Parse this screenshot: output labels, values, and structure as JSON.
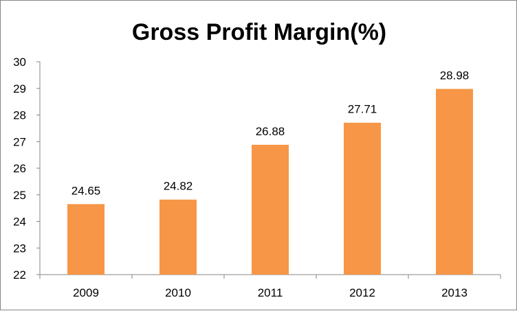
{
  "chart_data": {
    "type": "bar",
    "title": "Gross Profit Margin(%)",
    "categories": [
      "2009",
      "2010",
      "2011",
      "2012",
      "2013"
    ],
    "values": [
      24.65,
      24.82,
      26.88,
      27.71,
      28.98
    ],
    "data_labels": [
      "24.65",
      "24.82",
      "26.88",
      "27.71",
      "28.98"
    ],
    "ylim": [
      22,
      30
    ],
    "y_ticks": [
      "22",
      "23",
      "24",
      "25",
      "26",
      "27",
      "28",
      "29",
      "30"
    ],
    "xlabel": "",
    "ylabel": "",
    "grid": false,
    "legend": "none",
    "bar_color": "#F79646",
    "axis_color": "#868686"
  }
}
